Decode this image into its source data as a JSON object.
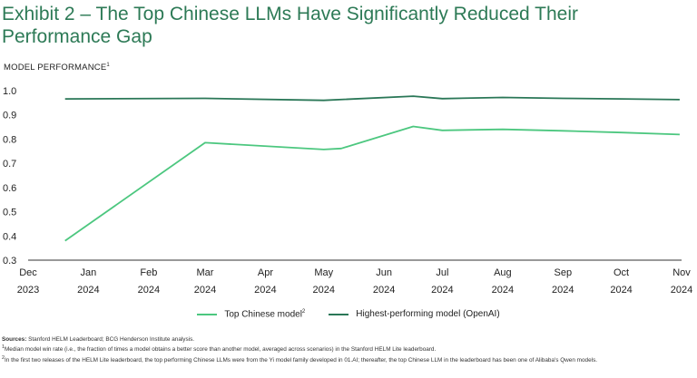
{
  "title": "Exhibit 2 – The Top Chinese LLMs Have Significantly Reduced Their Performance Gap",
  "ylabel": "MODEL PERFORMANCE",
  "ylabel_note": "1",
  "chart_data": {
    "type": "line",
    "title": "Exhibit 2 – The Top Chinese LLMs Have Significantly Reduced Their Performance Gap",
    "ylabel": "MODEL PERFORMANCE",
    "xlabel": "",
    "ylim": [
      0.3,
      1.0
    ],
    "yticks": [
      "1.0",
      "0.9",
      "0.8",
      "0.7",
      "0.6",
      "0.5",
      "0.4",
      "0.3"
    ],
    "ytick_values": [
      1.0,
      0.9,
      0.8,
      0.7,
      0.6,
      0.5,
      0.4,
      0.3
    ],
    "x_axis_type": "date",
    "xlim": [
      "2023-12-01",
      "2024-11-01"
    ],
    "xticks": [
      {
        "date": "2023-12-01",
        "month": "Dec",
        "year": "2023"
      },
      {
        "date": "2024-01-01",
        "month": "Jan",
        "year": "2024"
      },
      {
        "date": "2024-02-01",
        "month": "Feb",
        "year": "2024"
      },
      {
        "date": "2024-03-01",
        "month": "Mar",
        "year": "2024"
      },
      {
        "date": "2024-04-01",
        "month": "Apr",
        "year": "2024"
      },
      {
        "date": "2024-05-01",
        "month": "May",
        "year": "2024"
      },
      {
        "date": "2024-06-01",
        "month": "Jun",
        "year": "2024"
      },
      {
        "date": "2024-07-01",
        "month": "Jul",
        "year": "2024"
      },
      {
        "date": "2024-08-01",
        "month": "Aug",
        "year": "2024"
      },
      {
        "date": "2024-09-01",
        "month": "Sep",
        "year": "2024"
      },
      {
        "date": "2024-10-01",
        "month": "Oct",
        "year": "2024"
      },
      {
        "date": "2024-11-01",
        "month": "Nov",
        "year": "2024"
      }
    ],
    "grid": false,
    "legend_position": "bottom",
    "series": [
      {
        "name": "Top Chinese model",
        "name_note": "2",
        "color": "#4cc77f",
        "points": [
          {
            "x": "2023-12-20",
            "y": 0.38
          },
          {
            "x": "2024-03-01",
            "y": 0.785
          },
          {
            "x": "2024-05-01",
            "y": 0.757
          },
          {
            "x": "2024-05-10",
            "y": 0.761
          },
          {
            "x": "2024-06-16",
            "y": 0.852
          },
          {
            "x": "2024-07-01",
            "y": 0.836
          },
          {
            "x": "2024-08-01",
            "y": 0.84
          },
          {
            "x": "2024-09-01",
            "y": 0.834
          },
          {
            "x": "2024-10-01",
            "y": 0.827
          },
          {
            "x": "2024-10-31",
            "y": 0.819
          }
        ]
      },
      {
        "name": "Highest-performing model (OpenAI)",
        "color": "#2a7757",
        "points": [
          {
            "x": "2023-12-20",
            "y": 0.966
          },
          {
            "x": "2024-03-01",
            "y": 0.968
          },
          {
            "x": "2024-05-01",
            "y": 0.96
          },
          {
            "x": "2024-06-16",
            "y": 0.977
          },
          {
            "x": "2024-07-01",
            "y": 0.967
          },
          {
            "x": "2024-08-01",
            "y": 0.972
          },
          {
            "x": "2024-09-01",
            "y": 0.968
          },
          {
            "x": "2024-10-01",
            "y": 0.966
          },
          {
            "x": "2024-10-31",
            "y": 0.963
          }
        ]
      }
    ]
  },
  "legend": [
    {
      "label": "Top Chinese model",
      "note": "2",
      "color": "#4cc77f"
    },
    {
      "label": "Highest-performing model (OpenAI)",
      "note": "",
      "color": "#2a7757"
    }
  ],
  "notes": {
    "sources_label": "Sources:",
    "sources_text": " Stanford HELM Leaderboard; BCG Henderson Institute analysis.",
    "note1_mark": "1",
    "note1_text": "Median model win rate (i.e., the fraction of times a model obtains a better score than another model, averaged across scenarios) in the Stanford HELM Lite leaderboard.",
    "note2_mark": "2",
    "note2_text": "In the first two releases of the HELM Lite leaderboard, the top performing Chinese LLMs were from the Yi model family developed in 01.AI; thereafter, the top Chinese LLM in the leaderboard has been one of Alibaba's Qwen models."
  }
}
